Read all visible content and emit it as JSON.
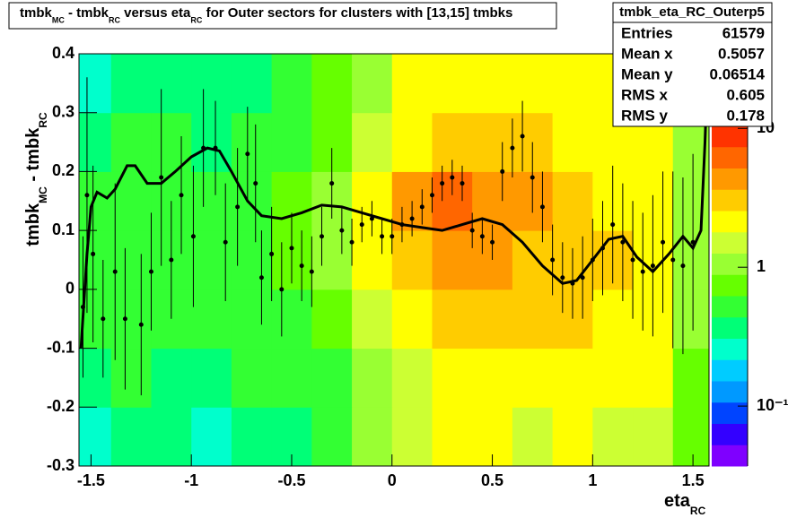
{
  "chart_data": {
    "type": "heatmap",
    "title_parts": [
      {
        "text": "tmbk"
      },
      {
        "sub": "MC"
      },
      {
        "text": " - tmbk"
      },
      {
        "sub": "RC"
      },
      {
        "text": " versus eta"
      },
      {
        "sub": "RC"
      },
      {
        "text": " for Outer sectors for clusters with [13,15] tmbks"
      }
    ],
    "x_label_parts": [
      {
        "text": "eta"
      },
      {
        "sub": "RC"
      }
    ],
    "y_label_parts": [
      {
        "text": "tmbk"
      },
      {
        "sub": "MC"
      },
      {
        "text": " - tmbk"
      },
      {
        "sub": "RC"
      }
    ],
    "xlim": [
      -1.56,
      1.58
    ],
    "ylim": [
      -0.3,
      0.4
    ],
    "xticks": [
      -1.5,
      -1,
      -0.5,
      0,
      0.5,
      1,
      1.5
    ],
    "yticks": [
      -0.3,
      -0.2,
      -0.1,
      0,
      0.1,
      0.2,
      0.3,
      0.4
    ],
    "zlim": [
      0.037,
      10.5
    ],
    "log_z": true,
    "zticks": [
      {
        "value": 0.1,
        "label": "10⁻¹"
      },
      1,
      10
    ],
    "palette": [
      "#7f00ff",
      "#3300ff",
      "#0044ff",
      "#0099ff",
      "#00ccff",
      "#00ffcc",
      "#00ff77",
      "#33ff33",
      "#66ff00",
      "#99ff33",
      "#ccff33",
      "#ffff00",
      "#ffcc00",
      "#ff9900",
      "#ff6600",
      "#ff3300"
    ],
    "bins_x": [
      -1.6,
      -1.4,
      -1.2,
      -1.0,
      -0.8,
      -0.6,
      -0.4,
      -0.2,
      0.0,
      0.2,
      0.4,
      0.6,
      0.8,
      1.0,
      1.2,
      1.4,
      1.6
    ],
    "bins_y": [
      -0.3,
      -0.2,
      -0.1,
      0.0,
      0.1,
      0.2,
      0.3,
      0.4
    ],
    "z": [
      [
        0.3,
        0.4,
        0.4,
        0.3,
        0.4,
        0.4,
        0.5,
        1.0,
        1.5,
        2,
        1.8,
        1.7,
        1.8,
        1.6,
        1.6,
        0.8
      ],
      [
        0.4,
        0.5,
        0.4,
        0.4,
        0.5,
        0.5,
        0.6,
        1.2,
        1.6,
        2.5,
        2.2,
        2.0,
        2.2,
        2.0,
        1.8,
        0.8
      ],
      [
        0.5,
        0.5,
        0.5,
        0.5,
        0.5,
        0.6,
        0.8,
        1.4,
        2,
        3,
        2.8,
        2.6,
        2.8,
        2.4,
        2,
        1
      ],
      [
        0.6,
        0.6,
        0.6,
        0.5,
        0.6,
        0.7,
        1.0,
        2.0,
        3,
        5,
        4.5,
        3.5,
        3,
        2.6,
        2,
        1
      ],
      [
        0.5,
        0.6,
        0.5,
        0.5,
        0.6,
        0.7,
        1.0,
        2.2,
        4,
        6,
        5,
        4,
        3,
        2.5,
        2,
        1
      ],
      [
        0.4,
        0.5,
        0.5,
        0.4,
        0.5,
        0.6,
        0.8,
        1.5,
        2.5,
        3.5,
        3,
        2.8,
        2.5,
        2.2,
        2,
        1
      ],
      [
        0.3,
        0.4,
        0.4,
        0.4,
        0.4,
        0.5,
        0.7,
        1.2,
        1.8,
        2.5,
        2.2,
        2,
        2,
        2,
        1.8,
        1
      ]
    ],
    "profile": {
      "color": "#000000",
      "x": [
        -1.54,
        -1.52,
        -1.49,
        -1.44,
        -1.38,
        -1.33,
        -1.25,
        -1.2,
        -1.15,
        -1.1,
        -1.05,
        -0.99,
        -0.94,
        -0.88,
        -0.83,
        -0.77,
        -0.72,
        -0.68,
        -0.65,
        -0.6,
        -0.55,
        -0.5,
        -0.45,
        -0.4,
        -0.35,
        -0.3,
        -0.25,
        -0.2,
        -0.15,
        -0.1,
        -0.05,
        0.0,
        0.05,
        0.1,
        0.15,
        0.2,
        0.25,
        0.3,
        0.35,
        0.4,
        0.45,
        0.5,
        0.55,
        0.6,
        0.65,
        0.7,
        0.75,
        0.8,
        0.85,
        0.9,
        0.95,
        1.0,
        1.05,
        1.1,
        1.15,
        1.2,
        1.25,
        1.3,
        1.35,
        1.4,
        1.45,
        1.5
      ],
      "y": [
        -0.03,
        0.16,
        0.06,
        -0.05,
        0.03,
        -0.05,
        -0.06,
        0.03,
        0.19,
        0.05,
        0.16,
        0.09,
        0.24,
        0.24,
        0.08,
        0.14,
        0.23,
        0.18,
        0.02,
        0.06,
        0.0,
        0.07,
        0.04,
        0.03,
        0.09,
        0.18,
        0.1,
        0.08,
        0.11,
        0.12,
        0.09,
        0.09,
        0.11,
        0.12,
        0.14,
        0.16,
        0.18,
        0.19,
        0.18,
        0.1,
        0.09,
        0.08,
        0.2,
        0.24,
        0.26,
        0.19,
        0.14,
        0.05,
        0.02,
        0.01,
        0.02,
        0.05,
        0.07,
        0.11,
        0.08,
        0.05,
        0.03,
        0.04,
        0.08,
        0.05,
        0.04,
        0.08
      ],
      "yerr": [
        0.12,
        0.2,
        0.15,
        0.1,
        0.15,
        0.12,
        0.12,
        0.1,
        0.15,
        0.1,
        0.1,
        0.12,
        0.1,
        0.08,
        0.1,
        0.1,
        0.08,
        0.1,
        0.08,
        0.08,
        0.08,
        0.06,
        0.06,
        0.06,
        0.05,
        0.06,
        0.04,
        0.04,
        0.03,
        0.03,
        0.03,
        0.03,
        0.03,
        0.03,
        0.03,
        0.03,
        0.03,
        0.03,
        0.03,
        0.03,
        0.03,
        0.03,
        0.05,
        0.05,
        0.06,
        0.06,
        0.06,
        0.06,
        0.06,
        0.06,
        0.07,
        0.07,
        0.08,
        0.1,
        0.1,
        0.1,
        0.1,
        0.12,
        0.12,
        0.15,
        0.15,
        0.15
      ]
    },
    "fit": {
      "color": "#000000",
      "x": [
        -1.55,
        -1.52,
        -1.5,
        -1.47,
        -1.42,
        -1.38,
        -1.32,
        -1.28,
        -1.22,
        -1.15,
        -1.08,
        -1.0,
        -0.92,
        -0.86,
        -0.8,
        -0.72,
        -0.65,
        -0.55,
        -0.45,
        -0.35,
        -0.25,
        -0.15,
        -0.05,
        0.05,
        0.15,
        0.25,
        0.35,
        0.45,
        0.55,
        0.65,
        0.75,
        0.85,
        0.92,
        1.0,
        1.08,
        1.15,
        1.22,
        1.3,
        1.38,
        1.45,
        1.5,
        1.54,
        1.56,
        1.57
      ],
      "y": [
        -0.1,
        0.06,
        0.14,
        0.165,
        0.155,
        0.17,
        0.21,
        0.21,
        0.18,
        0.18,
        0.2,
        0.225,
        0.24,
        0.235,
        0.2,
        0.15,
        0.125,
        0.12,
        0.13,
        0.143,
        0.14,
        0.13,
        0.12,
        0.11,
        0.105,
        0.1,
        0.11,
        0.12,
        0.11,
        0.08,
        0.04,
        0.01,
        0.015,
        0.05,
        0.085,
        0.09,
        0.055,
        0.03,
        0.06,
        0.09,
        0.07,
        0.1,
        0.25,
        0.35
      ]
    },
    "stats": {
      "name": "tmbk_eta_RC_Outerp5",
      "rows": [
        [
          "Entries",
          61579
        ],
        [
          "Mean x",
          0.5057
        ],
        [
          "Mean y",
          0.06514
        ],
        [
          "RMS x",
          0.605
        ],
        [
          "RMS y",
          0.178
        ]
      ]
    }
  }
}
